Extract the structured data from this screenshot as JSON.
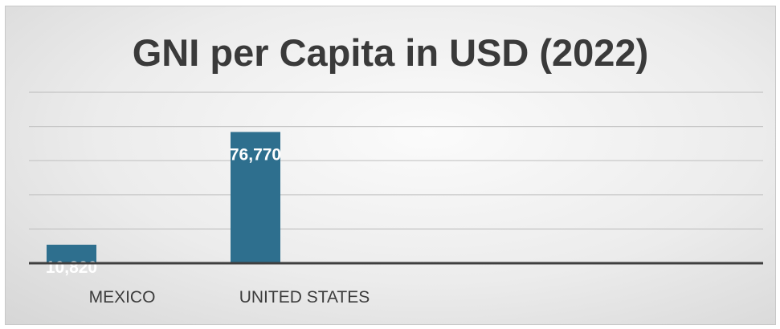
{
  "chart_data": {
    "type": "bar",
    "title": "GNI per Capita in USD (2022)",
    "categories": [
      "MEXICO",
      "UNITED STATES"
    ],
    "values": [
      10820,
      76770
    ],
    "value_labels": [
      "10,820",
      "76,770"
    ],
    "xlabel": "",
    "ylabel": "",
    "ylim": [
      0,
      100000
    ],
    "gridlines": [
      20000,
      40000,
      60000,
      80000,
      100000
    ],
    "grid": true,
    "legend": "none",
    "bar_color": "#2e6f8e"
  }
}
